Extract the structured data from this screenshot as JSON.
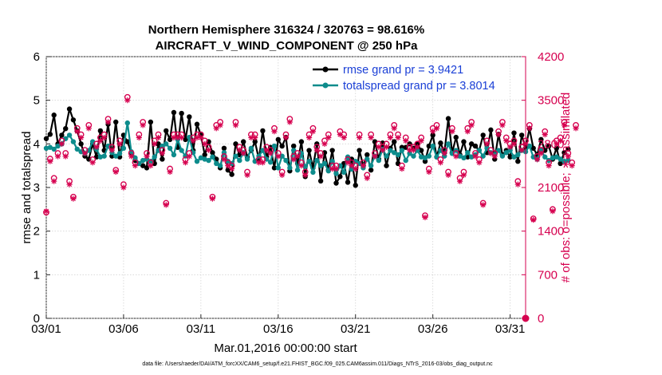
{
  "chart_data": {
    "type": "line",
    "title_line1": "Northern Hemisphere 316324 / 320763 = 98.616%",
    "title_line2": "AIRCRAFT_V_WIND_COMPONENT @ 250 hPa",
    "xlabel": "Mar.01,2016 00:00:00 start",
    "ylabel_left": "rmse and totalspread",
    "ylabel_right": "# of obs: o=possible; ∗=assimilated",
    "footer": "data file: /Users/raeder/DAI/ATM_forcXX/CAM6_setup/f.e21.FHIST_BGC.f09_025.CAM6assim.011/Diags_NTrS_2016-03/obs_diag_output.nc",
    "xlim": [
      1,
      32
    ],
    "ylim_left": [
      0,
      6
    ],
    "ylim_right": [
      0,
      4200
    ],
    "x_ticks": [
      {
        "v": 1,
        "label": "03/01"
      },
      {
        "v": 6,
        "label": "03/06"
      },
      {
        "v": 11,
        "label": "03/11"
      },
      {
        "v": 16,
        "label": "03/16"
      },
      {
        "v": 21,
        "label": "03/21"
      },
      {
        "v": 26,
        "label": "03/26"
      },
      {
        "v": 31,
        "label": "03/31"
      }
    ],
    "y_ticks_left": [
      "0",
      "1",
      "2",
      "3",
      "4",
      "5",
      "6"
    ],
    "y_ticks_right": [
      "0",
      "700",
      "1400",
      "2100",
      "2800",
      "3500",
      "4200"
    ],
    "colors": {
      "rmse": "#000000",
      "spread": "#0d8c8c",
      "obs": "#d6004f",
      "legend_text": "#1a3fd6"
    },
    "series": [
      {
        "name": "rmse grand pr = 3.9421",
        "start": 1.0,
        "step": 0.25,
        "values": [
          4.12,
          4.22,
          4.66,
          4.0,
          4.2,
          4.35,
          4.8,
          4.55,
          4.3,
          4.0,
          3.72,
          3.65,
          4.0,
          3.7,
          4.3,
          3.85,
          4.45,
          3.72,
          4.5,
          3.7,
          4.2,
          4.05,
          3.8,
          3.62,
          3.55,
          3.5,
          3.45,
          4.5,
          3.55,
          4.0,
          3.65,
          4.3,
          4.1,
          4.72,
          3.92,
          4.7,
          4.1,
          4.62,
          3.85,
          4.45,
          4.2,
          3.75,
          4.05,
          3.8,
          3.65,
          3.45,
          3.9,
          3.4,
          3.3,
          4.0,
          3.75,
          4.05,
          3.7,
          3.85,
          4.05,
          3.65,
          4.3,
          3.7,
          3.92,
          3.45,
          4.1,
          3.95,
          4.15,
          3.38,
          3.95,
          3.55,
          4.05,
          3.25,
          3.85,
          3.45,
          4.0,
          3.15,
          3.8,
          3.4,
          3.85,
          3.1,
          3.25,
          3.55,
          3.12,
          3.65,
          3.05,
          3.85,
          3.5,
          3.75,
          3.4,
          4.05,
          3.65,
          4.02,
          3.5,
          3.9,
          4.05,
          3.55,
          3.92,
          3.92,
          4.0,
          3.9,
          4.0,
          3.85,
          3.6,
          3.95,
          4.2,
          3.7,
          4.02,
          3.8,
          4.58,
          3.8,
          4.15,
          3.75,
          4.05,
          3.7,
          4.0,
          3.95,
          3.85,
          4.2,
          3.8,
          4.32,
          3.65,
          4.22,
          3.75,
          3.85,
          3.7,
          4.25,
          3.6,
          4.2,
          3.9,
          4.35,
          3.9,
          3.75,
          4.1,
          3.85,
          3.95,
          3.65,
          3.9,
          3.55,
          3.8,
          3.88
        ],
        "color": "#000000"
      },
      {
        "name": "totalspread grand pr = 3.8014",
        "start": 1.0,
        "step": 0.25,
        "values": [
          3.9,
          3.92,
          3.88,
          3.95,
          4.0,
          4.12,
          4.2,
          4.05,
          3.88,
          3.82,
          3.78,
          3.85,
          4.05,
          3.88,
          3.7,
          3.72,
          3.95,
          3.8,
          3.72,
          3.78,
          3.9,
          4.48,
          3.82,
          3.68,
          3.55,
          3.62,
          3.65,
          3.6,
          3.7,
          3.85,
          3.95,
          4.0,
          3.9,
          3.75,
          4.1,
          3.85,
          3.72,
          4.15,
          3.8,
          3.6,
          3.68,
          3.65,
          3.62,
          3.7,
          3.55,
          3.5,
          3.8,
          3.6,
          3.55,
          3.72,
          3.62,
          3.8,
          3.65,
          3.9,
          3.6,
          3.72,
          3.85,
          3.65,
          3.58,
          3.95,
          3.45,
          3.72,
          3.62,
          3.45,
          3.85,
          3.4,
          3.78,
          3.48,
          3.6,
          3.35,
          3.62,
          3.5,
          3.55,
          3.38,
          3.6,
          3.32,
          3.5,
          3.35,
          3.7,
          3.42,
          3.6,
          3.55,
          3.45,
          3.65,
          3.5,
          3.72,
          3.62,
          3.88,
          3.72,
          3.85,
          3.8,
          3.75,
          3.85,
          3.62,
          3.78,
          3.72,
          3.85,
          3.7,
          3.68,
          3.72,
          3.95,
          3.7,
          3.85,
          3.72,
          4.0,
          3.78,
          3.85,
          3.72,
          3.68,
          3.8,
          3.7,
          3.75,
          3.85,
          3.72,
          3.9,
          3.8,
          3.75,
          3.85,
          3.72,
          3.8,
          3.85,
          3.7,
          3.75,
          3.85,
          3.82,
          3.95,
          3.7,
          3.65,
          3.85,
          3.7,
          3.62,
          3.68,
          3.7,
          3.65,
          3.6,
          3.62
        ],
        "color": "#0d8c8c"
      }
    ],
    "obs_possible": {
      "start": 1.0,
      "step": 0.25,
      "values": [
        1700,
        2560,
        2250,
        2650,
        2850,
        2650,
        2200,
        1950,
        3050,
        2950,
        2700,
        3100,
        2550,
        2800,
        2900,
        2950,
        3200,
        2750,
        2380,
        2850,
        2150,
        3550,
        2650,
        2500,
        2950,
        3150,
        2650,
        2500,
        2850,
        2950,
        2700,
        1850,
        2400,
        2950,
        2950,
        2950,
        2550,
        2650,
        2900,
        2950,
        2950,
        2850,
        2750,
        1950,
        3100,
        3150,
        2600,
        2500,
        2450,
        3150,
        2750,
        2700,
        2350,
        2950,
        2950,
        2550,
        2550,
        2750,
        2700,
        3050,
        2650,
        2350,
        2950,
        3200,
        2600,
        2650,
        2500,
        2350,
        2950,
        3050,
        2750,
        2650,
        2850,
        2950,
        2450,
        2450,
        3000,
        2950,
        2550,
        2500,
        2450,
        2950,
        2500,
        2300,
        2950,
        2650,
        2800,
        2750,
        2800,
        2950,
        3100,
        2950,
        2450,
        2900,
        2750,
        2750,
        2800,
        2900,
        1650,
        2400,
        3050,
        3100,
        2550,
        2700,
        2350,
        3050,
        2650,
        2250,
        2350,
        3050,
        3150,
        2650,
        2550,
        1850,
        2850,
        2700,
        2650,
        3000,
        3150,
        2900,
        2800,
        2850,
        2200,
        2750,
        2850,
        3100,
        1600,
        2600,
        2700,
        3000,
        2500,
        1750,
        2850,
        2900,
        3150,
        2650,
        2500,
        3100
      ]
    },
    "obs_assim": {
      "start": 1.0,
      "step": 0.25,
      "values": [
        1720,
        2520,
        2200,
        2600,
        2800,
        2600,
        2150,
        1920,
        3000,
        2900,
        2650,
        3050,
        2500,
        2750,
        2850,
        2900,
        3150,
        2700,
        2350,
        2800,
        2100,
        3500,
        2600,
        2450,
        2900,
        3100,
        2600,
        2450,
        2800,
        2900,
        2650,
        1820,
        2350,
        2900,
        2900,
        2900,
        2500,
        2600,
        2850,
        2900,
        2900,
        2800,
        2700,
        1920,
        3050,
        3100,
        2550,
        2450,
        2400,
        3100,
        2700,
        2650,
        2300,
        2900,
        2900,
        2500,
        2500,
        2700,
        2650,
        3000,
        2600,
        2300,
        2900,
        3150,
        2550,
        2600,
        2450,
        2300,
        2900,
        3000,
        2700,
        2600,
        2800,
        2900,
        2400,
        2400,
        2950,
        2900,
        2500,
        2450,
        2400,
        2900,
        2450,
        2250,
        2900,
        2600,
        2750,
        2700,
        2750,
        2900,
        3050,
        2900,
        2400,
        2850,
        2700,
        2700,
        2750,
        2850,
        1620,
        2350,
        3000,
        3050,
        2500,
        2650,
        2300,
        3000,
        2600,
        2200,
        2300,
        3000,
        3100,
        2600,
        2500,
        1820,
        2800,
        2650,
        2600,
        2950,
        3100,
        2850,
        2750,
        2800,
        2150,
        2700,
        2800,
        3050,
        1580,
        2550,
        2650,
        2950,
        2450,
        1720,
        2800,
        2850,
        3100,
        2600,
        2450,
        3050
      ]
    },
    "obs_extra_point": {
      "x": 32,
      "value": 0
    }
  }
}
